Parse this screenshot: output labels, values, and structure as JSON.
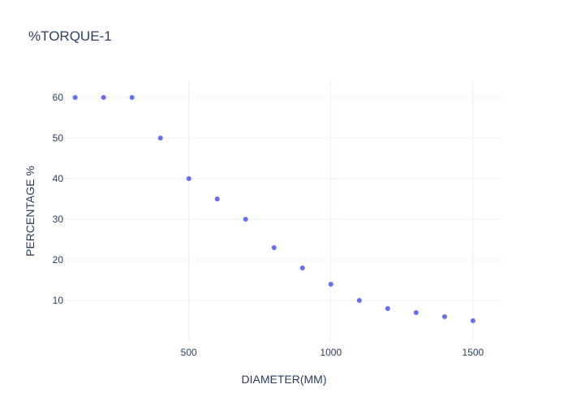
{
  "chart_data": {
    "type": "scatter",
    "title": "%TORQUE-1",
    "xlabel": "DIAMETER(MM)",
    "ylabel": "PERCENTAGE %",
    "x_ticks": [
      500,
      1000,
      1500
    ],
    "y_ticks": [
      10,
      20,
      30,
      40,
      50,
      60
    ],
    "xlim": [
      64,
      1606
    ],
    "ylim": [
      0,
      64
    ],
    "grid": true,
    "marker_color": "#636efa",
    "series": [
      {
        "x": [
          100,
          200,
          300,
          400,
          500,
          600,
          700,
          800,
          900,
          1000,
          1100,
          1200,
          1300,
          1400,
          1500
        ],
        "y": [
          60,
          60,
          60,
          50,
          40,
          35,
          30,
          23,
          18,
          14,
          10,
          8,
          7,
          6,
          5
        ]
      }
    ]
  }
}
